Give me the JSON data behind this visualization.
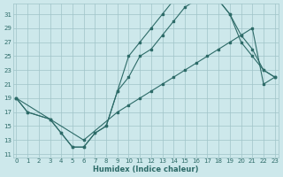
{
  "xlabel": "Humidex (Indice chaleur)",
  "background_color": "#cde8eb",
  "grid_color": "#a0c4c8",
  "line_color": "#2d6b68",
  "xlim": [
    -0.3,
    23.3
  ],
  "ylim": [
    10.5,
    32.5
  ],
  "xticks": [
    0,
    1,
    2,
    3,
    4,
    5,
    6,
    7,
    8,
    9,
    10,
    11,
    12,
    13,
    14,
    15,
    16,
    17,
    18,
    19,
    20,
    21,
    22,
    23
  ],
  "yticks": [
    11,
    13,
    15,
    17,
    19,
    21,
    23,
    25,
    27,
    29,
    31
  ],
  "line1_x": [
    0,
    1,
    3,
    4,
    5,
    6,
    7,
    8,
    9,
    10,
    11,
    12,
    13,
    14,
    15,
    16,
    17,
    18,
    19,
    20,
    21,
    22,
    23
  ],
  "line1_y": [
    19,
    17,
    16,
    14,
    12,
    12,
    14,
    15,
    20,
    25,
    27,
    29,
    31,
    33,
    33,
    33,
    33,
    33,
    31,
    28,
    26,
    23,
    22
  ],
  "line2_x": [
    0,
    3,
    4,
    5,
    6,
    7,
    8,
    9,
    10,
    11,
    12,
    13,
    14,
    15,
    16,
    17,
    18,
    19,
    20,
    21,
    22,
    23
  ],
  "line2_y": [
    19,
    16,
    14,
    12,
    12,
    14,
    15,
    20,
    22,
    25,
    26,
    28,
    30,
    32,
    33,
    33,
    33,
    31,
    27,
    25,
    23,
    22
  ],
  "line3_x": [
    0,
    1,
    3,
    6,
    9,
    10,
    11,
    12,
    13,
    14,
    15,
    16,
    17,
    18,
    19,
    20,
    21,
    22,
    23
  ],
  "line3_y": [
    19,
    17,
    16,
    13,
    17,
    18,
    19,
    20,
    21,
    22,
    23,
    24,
    25,
    26,
    27,
    28,
    29,
    21,
    22
  ]
}
